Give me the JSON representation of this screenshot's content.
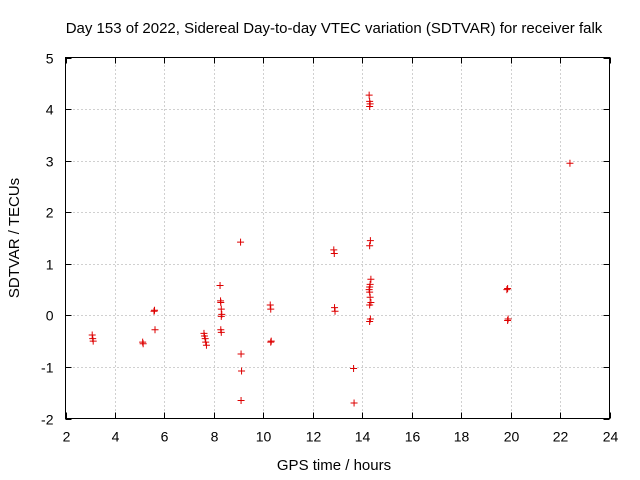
{
  "chart_data": {
    "type": "scatter",
    "title": "Day 153 of 2022, Sidereal Day-to-day VTEC variation (SDTVAR) for receiver falk",
    "xlabel": "GPS time / hours",
    "ylabel": "SDTVAR / TECUs",
    "xlim": [
      2,
      24
    ],
    "ylim": [
      -2,
      5
    ],
    "xticks": [
      2,
      4,
      6,
      8,
      10,
      12,
      14,
      16,
      18,
      20,
      22,
      24
    ],
    "yticks": [
      -2,
      -1,
      0,
      1,
      2,
      3,
      4,
      5
    ],
    "grid": true,
    "marker_color": "#dd0000",
    "series": [
      {
        "name": "SDTVAR",
        "x": [
          3.08,
          3.1,
          3.12,
          5.12,
          5.14,
          5.58,
          5.6,
          5.62,
          7.6,
          7.62,
          7.65,
          7.67,
          7.7,
          8.25,
          8.27,
          8.28,
          8.3,
          8.32,
          8.3,
          8.28,
          8.3,
          9.08,
          9.1,
          9.12,
          9.1,
          10.28,
          10.3,
          10.32,
          10.3,
          12.85,
          12.87,
          12.88,
          12.9,
          13.65,
          13.67,
          14.28,
          14.3,
          14.32,
          14.3,
          14.33,
          14.3,
          14.35,
          14.32,
          14.3,
          14.28,
          14.3,
          14.32,
          14.35,
          14.3,
          14.33,
          14.3,
          19.85,
          19.88,
          19.9,
          19.88,
          22.4
        ],
        "y": [
          -0.38,
          -0.45,
          -0.5,
          -0.52,
          -0.55,
          0.08,
          0.1,
          -0.28,
          -0.35,
          -0.4,
          -0.45,
          -0.52,
          -0.58,
          0.58,
          0.28,
          0.25,
          0.12,
          0.02,
          -0.02,
          -0.28,
          -0.33,
          1.42,
          -0.75,
          -1.08,
          -1.65,
          0.2,
          0.12,
          -0.5,
          -0.52,
          1.27,
          1.2,
          0.15,
          0.08,
          -1.03,
          -1.7,
          4.27,
          4.15,
          4.1,
          4.05,
          1.45,
          1.35,
          0.7,
          0.6,
          0.55,
          0.5,
          0.45,
          0.35,
          0.25,
          0.2,
          -0.07,
          -0.12,
          0.5,
          0.52,
          -0.07,
          -0.1,
          2.95
        ]
      }
    ]
  }
}
